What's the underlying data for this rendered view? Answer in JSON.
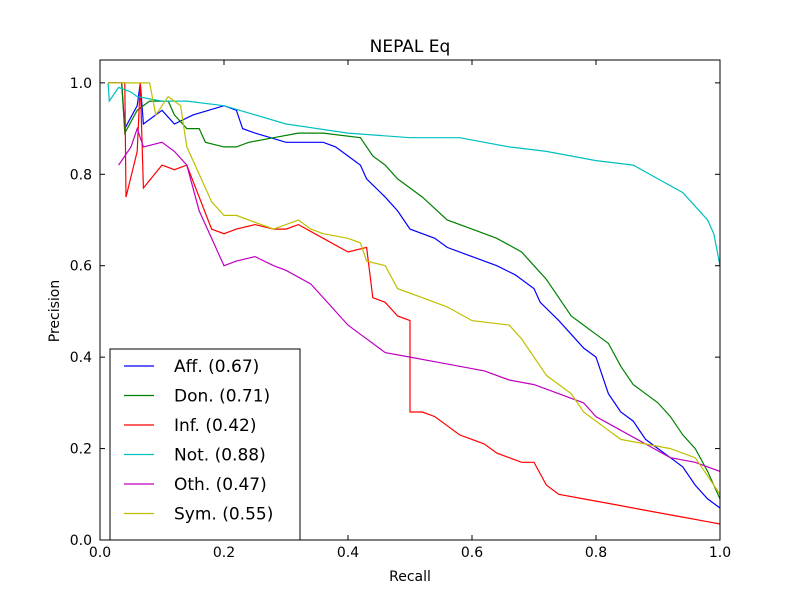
{
  "chart_data": {
    "type": "line",
    "title": "NEPAL Eq",
    "xlabel": "Recall",
    "ylabel": "Precision",
    "xlim": [
      0.0,
      1.0
    ],
    "ylim": [
      0.0,
      1.05
    ],
    "xticks": [
      "0.0",
      "0.2",
      "0.4",
      "0.6",
      "0.8",
      "1.0"
    ],
    "yticks": [
      "0.0",
      "0.2",
      "0.4",
      "0.6",
      "0.8",
      "1.0"
    ],
    "legend_position": "lower-left",
    "series": [
      {
        "name": "Aff.",
        "label": "Aff. (0.67)",
        "color": "#0000ff",
        "points": [
          [
            0.013,
            1.0
          ],
          [
            0.035,
            1.0
          ],
          [
            0.04,
            0.9
          ],
          [
            0.06,
            0.95
          ],
          [
            0.065,
            1.0
          ],
          [
            0.07,
            0.91
          ],
          [
            0.1,
            0.94
          ],
          [
            0.12,
            0.91
          ],
          [
            0.15,
            0.93
          ],
          [
            0.2,
            0.95
          ],
          [
            0.22,
            0.94
          ],
          [
            0.23,
            0.9
          ],
          [
            0.25,
            0.89
          ],
          [
            0.3,
            0.87
          ],
          [
            0.36,
            0.87
          ],
          [
            0.38,
            0.86
          ],
          [
            0.4,
            0.84
          ],
          [
            0.42,
            0.82
          ],
          [
            0.43,
            0.79
          ],
          [
            0.46,
            0.75
          ],
          [
            0.48,
            0.72
          ],
          [
            0.5,
            0.68
          ],
          [
            0.52,
            0.67
          ],
          [
            0.54,
            0.66
          ],
          [
            0.56,
            0.64
          ],
          [
            0.6,
            0.62
          ],
          [
            0.64,
            0.6
          ],
          [
            0.67,
            0.58
          ],
          [
            0.7,
            0.55
          ],
          [
            0.71,
            0.52
          ],
          [
            0.74,
            0.48
          ],
          [
            0.76,
            0.45
          ],
          [
            0.78,
            0.42
          ],
          [
            0.8,
            0.4
          ],
          [
            0.82,
            0.32
          ],
          [
            0.84,
            0.28
          ],
          [
            0.86,
            0.26
          ],
          [
            0.88,
            0.22
          ],
          [
            0.9,
            0.2
          ],
          [
            0.92,
            0.18
          ],
          [
            0.94,
            0.16
          ],
          [
            0.96,
            0.12
          ],
          [
            0.98,
            0.09
          ],
          [
            1.0,
            0.07
          ]
        ]
      },
      {
        "name": "Don.",
        "label": "Don. (0.71)",
        "color": "#008000",
        "points": [
          [
            0.035,
            1.0
          ],
          [
            0.04,
            0.89
          ],
          [
            0.06,
            0.94
          ],
          [
            0.08,
            0.96
          ],
          [
            0.11,
            0.96
          ],
          [
            0.12,
            0.93
          ],
          [
            0.14,
            0.9
          ],
          [
            0.16,
            0.9
          ],
          [
            0.17,
            0.87
          ],
          [
            0.2,
            0.86
          ],
          [
            0.22,
            0.86
          ],
          [
            0.24,
            0.87
          ],
          [
            0.28,
            0.88
          ],
          [
            0.32,
            0.89
          ],
          [
            0.36,
            0.89
          ],
          [
            0.42,
            0.88
          ],
          [
            0.44,
            0.84
          ],
          [
            0.46,
            0.82
          ],
          [
            0.48,
            0.79
          ],
          [
            0.5,
            0.77
          ],
          [
            0.52,
            0.75
          ],
          [
            0.56,
            0.7
          ],
          [
            0.6,
            0.68
          ],
          [
            0.64,
            0.66
          ],
          [
            0.68,
            0.63
          ],
          [
            0.7,
            0.6
          ],
          [
            0.72,
            0.57
          ],
          [
            0.74,
            0.53
          ],
          [
            0.76,
            0.49
          ],
          [
            0.78,
            0.47
          ],
          [
            0.8,
            0.45
          ],
          [
            0.82,
            0.43
          ],
          [
            0.84,
            0.38
          ],
          [
            0.86,
            0.34
          ],
          [
            0.88,
            0.32
          ],
          [
            0.9,
            0.3
          ],
          [
            0.92,
            0.27
          ],
          [
            0.94,
            0.23
          ],
          [
            0.96,
            0.2
          ],
          [
            0.98,
            0.15
          ],
          [
            1.0,
            0.09
          ]
        ]
      },
      {
        "name": "Inf.",
        "label": "Inf. (0.42)",
        "color": "#ff0000",
        "points": [
          [
            0.013,
            1.0
          ],
          [
            0.04,
            1.0
          ],
          [
            0.042,
            0.75
          ],
          [
            0.06,
            0.85
          ],
          [
            0.065,
            1.0
          ],
          [
            0.07,
            0.77
          ],
          [
            0.1,
            0.82
          ],
          [
            0.12,
            0.81
          ],
          [
            0.14,
            0.82
          ],
          [
            0.18,
            0.68
          ],
          [
            0.2,
            0.67
          ],
          [
            0.22,
            0.68
          ],
          [
            0.25,
            0.69
          ],
          [
            0.28,
            0.68
          ],
          [
            0.3,
            0.68
          ],
          [
            0.32,
            0.69
          ],
          [
            0.36,
            0.66
          ],
          [
            0.4,
            0.63
          ],
          [
            0.43,
            0.64
          ],
          [
            0.44,
            0.53
          ],
          [
            0.46,
            0.52
          ],
          [
            0.48,
            0.49
          ],
          [
            0.5,
            0.48
          ],
          [
            0.5,
            0.28
          ],
          [
            0.52,
            0.28
          ],
          [
            0.54,
            0.27
          ],
          [
            0.56,
            0.25
          ],
          [
            0.58,
            0.23
          ],
          [
            0.6,
            0.22
          ],
          [
            0.62,
            0.21
          ],
          [
            0.64,
            0.19
          ],
          [
            0.66,
            0.18
          ],
          [
            0.68,
            0.17
          ],
          [
            0.7,
            0.17
          ],
          [
            0.72,
            0.12
          ],
          [
            0.74,
            0.1
          ],
          [
            0.78,
            0.09
          ],
          [
            0.82,
            0.08
          ],
          [
            0.86,
            0.07
          ],
          [
            0.9,
            0.06
          ],
          [
            0.94,
            0.05
          ],
          [
            0.98,
            0.04
          ],
          [
            1.0,
            0.035
          ]
        ]
      },
      {
        "name": "Not.",
        "label": "Not. (0.88)",
        "color": "#00bfbf",
        "points": [
          [
            0.013,
            1.0
          ],
          [
            0.015,
            0.96
          ],
          [
            0.03,
            0.99
          ],
          [
            0.05,
            0.98
          ],
          [
            0.06,
            0.97
          ],
          [
            0.1,
            0.96
          ],
          [
            0.14,
            0.96
          ],
          [
            0.2,
            0.95
          ],
          [
            0.3,
            0.91
          ],
          [
            0.4,
            0.89
          ],
          [
            0.5,
            0.88
          ],
          [
            0.58,
            0.88
          ],
          [
            0.66,
            0.86
          ],
          [
            0.72,
            0.85
          ],
          [
            0.76,
            0.84
          ],
          [
            0.8,
            0.83
          ],
          [
            0.86,
            0.82
          ],
          [
            0.9,
            0.79
          ],
          [
            0.94,
            0.76
          ],
          [
            0.96,
            0.73
          ],
          [
            0.98,
            0.7
          ],
          [
            0.99,
            0.67
          ],
          [
            1.0,
            0.6
          ]
        ]
      },
      {
        "name": "Oth.",
        "label": "Oth. (0.47)",
        "color": "#bf00bf",
        "points": [
          [
            0.03,
            0.82
          ],
          [
            0.05,
            0.86
          ],
          [
            0.06,
            0.9
          ],
          [
            0.07,
            0.86
          ],
          [
            0.1,
            0.87
          ],
          [
            0.12,
            0.85
          ],
          [
            0.14,
            0.82
          ],
          [
            0.16,
            0.72
          ],
          [
            0.18,
            0.66
          ],
          [
            0.2,
            0.6
          ],
          [
            0.22,
            0.61
          ],
          [
            0.25,
            0.62
          ],
          [
            0.28,
            0.6
          ],
          [
            0.3,
            0.59
          ],
          [
            0.34,
            0.56
          ],
          [
            0.38,
            0.5
          ],
          [
            0.4,
            0.47
          ],
          [
            0.42,
            0.45
          ],
          [
            0.44,
            0.43
          ],
          [
            0.46,
            0.41
          ],
          [
            0.5,
            0.4
          ],
          [
            0.54,
            0.39
          ],
          [
            0.58,
            0.38
          ],
          [
            0.62,
            0.37
          ],
          [
            0.66,
            0.35
          ],
          [
            0.7,
            0.34
          ],
          [
            0.74,
            0.32
          ],
          [
            0.78,
            0.3
          ],
          [
            0.8,
            0.27
          ],
          [
            0.84,
            0.24
          ],
          [
            0.88,
            0.21
          ],
          [
            0.92,
            0.18
          ],
          [
            0.96,
            0.17
          ],
          [
            1.0,
            0.15
          ]
        ]
      },
      {
        "name": "Sym.",
        "label": "Sym. (0.55)",
        "color": "#bfbf00",
        "points": [
          [
            0.013,
            1.0
          ],
          [
            0.08,
            1.0
          ],
          [
            0.09,
            0.93
          ],
          [
            0.11,
            0.97
          ],
          [
            0.13,
            0.95
          ],
          [
            0.14,
            0.86
          ],
          [
            0.16,
            0.8
          ],
          [
            0.18,
            0.74
          ],
          [
            0.2,
            0.71
          ],
          [
            0.22,
            0.71
          ],
          [
            0.24,
            0.7
          ],
          [
            0.26,
            0.69
          ],
          [
            0.28,
            0.68
          ],
          [
            0.3,
            0.69
          ],
          [
            0.32,
            0.7
          ],
          [
            0.34,
            0.68
          ],
          [
            0.36,
            0.67
          ],
          [
            0.4,
            0.66
          ],
          [
            0.42,
            0.65
          ],
          [
            0.43,
            0.61
          ],
          [
            0.46,
            0.6
          ],
          [
            0.48,
            0.55
          ],
          [
            0.52,
            0.53
          ],
          [
            0.56,
            0.51
          ],
          [
            0.6,
            0.48
          ],
          [
            0.66,
            0.47
          ],
          [
            0.68,
            0.44
          ],
          [
            0.7,
            0.4
          ],
          [
            0.72,
            0.36
          ],
          [
            0.74,
            0.34
          ],
          [
            0.76,
            0.32
          ],
          [
            0.78,
            0.28
          ],
          [
            0.8,
            0.26
          ],
          [
            0.82,
            0.24
          ],
          [
            0.84,
            0.22
          ],
          [
            0.88,
            0.21
          ],
          [
            0.92,
            0.2
          ],
          [
            0.96,
            0.18
          ],
          [
            1.0,
            0.1
          ]
        ]
      }
    ]
  }
}
